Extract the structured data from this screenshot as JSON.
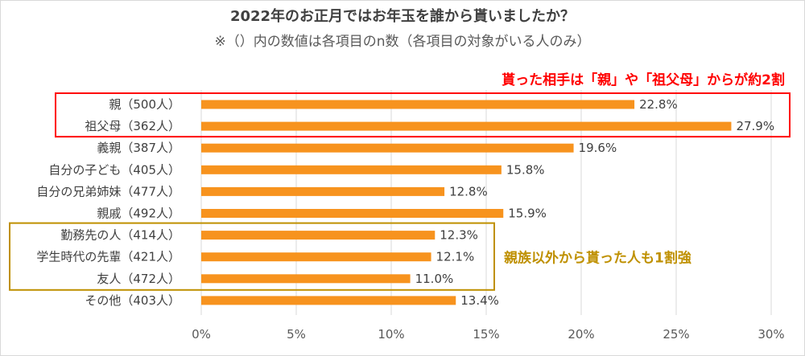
{
  "chart_data": {
    "type": "bar",
    "orientation": "horizontal",
    "title": "2022年のお正月ではお年玉を誰から貰いましたか？",
    "subtitle": "※（）内の数値は各項目のn数（各項目の対象がいる人のみ）",
    "categories": [
      "親（500人）",
      "祖父母（362人）",
      "義親（387人）",
      "自分の子ども（405人）",
      "自分の兄弟姉妹（477人）",
      "親戚（492人）",
      "勤務先の人（414人）",
      "学生時代の先輩（421人）",
      "友人（472人）",
      "その他（403人）"
    ],
    "values": [
      22.8,
      27.9,
      19.6,
      15.8,
      12.8,
      15.9,
      12.3,
      12.1,
      11.0,
      13.4
    ],
    "value_labels": [
      "22.8%",
      "27.9%",
      "19.6%",
      "15.8%",
      "12.8%",
      "15.9%",
      "12.3%",
      "12.1%",
      "11.0%",
      "13.4%"
    ],
    "xlim": [
      0,
      30
    ],
    "xticks": [
      "0%",
      "5%",
      "10%",
      "15%",
      "20%",
      "25%",
      "30%"
    ],
    "grid": true,
    "annotations": [
      {
        "text": "貰った相手は「親」や「祖父母」からが約2割",
        "color": "#ff0000",
        "groups": [
          0,
          1
        ]
      },
      {
        "text": "親族以外から貰った人も1割強",
        "color": "#bf9000",
        "groups": [
          6,
          7,
          8
        ]
      }
    ]
  },
  "colors": {
    "bar": "#f7931e",
    "grid": "#d9d9d9",
    "text": "#404040",
    "red": "#ff0000",
    "gold": "#bf9000"
  }
}
